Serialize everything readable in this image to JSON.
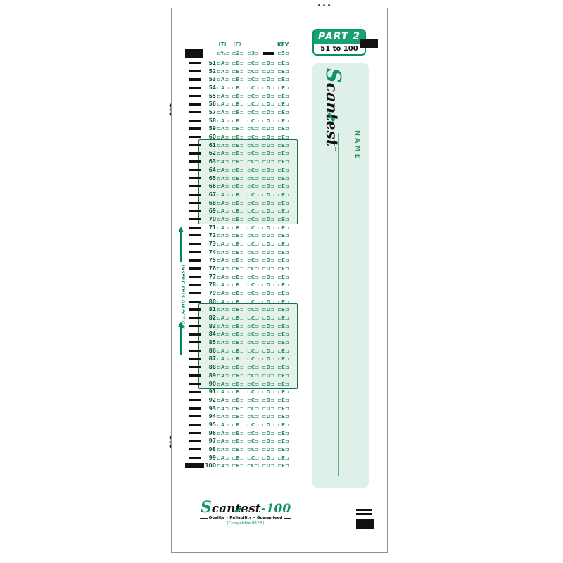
{
  "header": {
    "part_label": "PART 2",
    "range_label": "51 to 100",
    "t_label": "(T)",
    "f_label": "(F)",
    "key_label": "KEY"
  },
  "key_row": {
    "bubbles": [
      "%",
      "2",
      "3",
      "",
      "5"
    ],
    "filled_index": 3
  },
  "answer_grid": {
    "letters": [
      "A",
      "B",
      "C",
      "D",
      "E"
    ],
    "row_numbers": [
      51,
      52,
      53,
      54,
      55,
      56,
      57,
      58,
      59,
      60,
      61,
      62,
      63,
      64,
      65,
      66,
      67,
      68,
      69,
      70,
      71,
      72,
      73,
      74,
      75,
      76,
      77,
      78,
      79,
      80,
      81,
      82,
      83,
      84,
      85,
      86,
      87,
      88,
      89,
      90,
      91,
      92,
      93,
      94,
      95,
      96,
      97,
      98,
      99,
      100
    ],
    "boxed_ranges": [
      [
        61,
        70
      ],
      [
        81,
        90
      ]
    ]
  },
  "side": {
    "insert_label": "INSERT THIS DIRECTION"
  },
  "name_panel": {
    "logo_s": "S",
    "logo_mid1": "can",
    "logo_t": "t",
    "logo_mid2": "est",
    "logo_tm": "™",
    "name_label": "NAME"
  },
  "footer": {
    "logo_s": "S",
    "logo_mid1": "can",
    "logo_t": "t",
    "logo_mid2": "est",
    "logo_suffix": "-100",
    "tagline": "Quality • Reliability • Guaranteed",
    "compat": "(Compatible 882 E)"
  },
  "colors": {
    "green": "#109467",
    "dark_green": "#145c3e",
    "bubble_green": "#2f9168",
    "mint_panel": "#def0e7",
    "mint_box": "#e4f2ea",
    "mark_black": "#111111"
  }
}
